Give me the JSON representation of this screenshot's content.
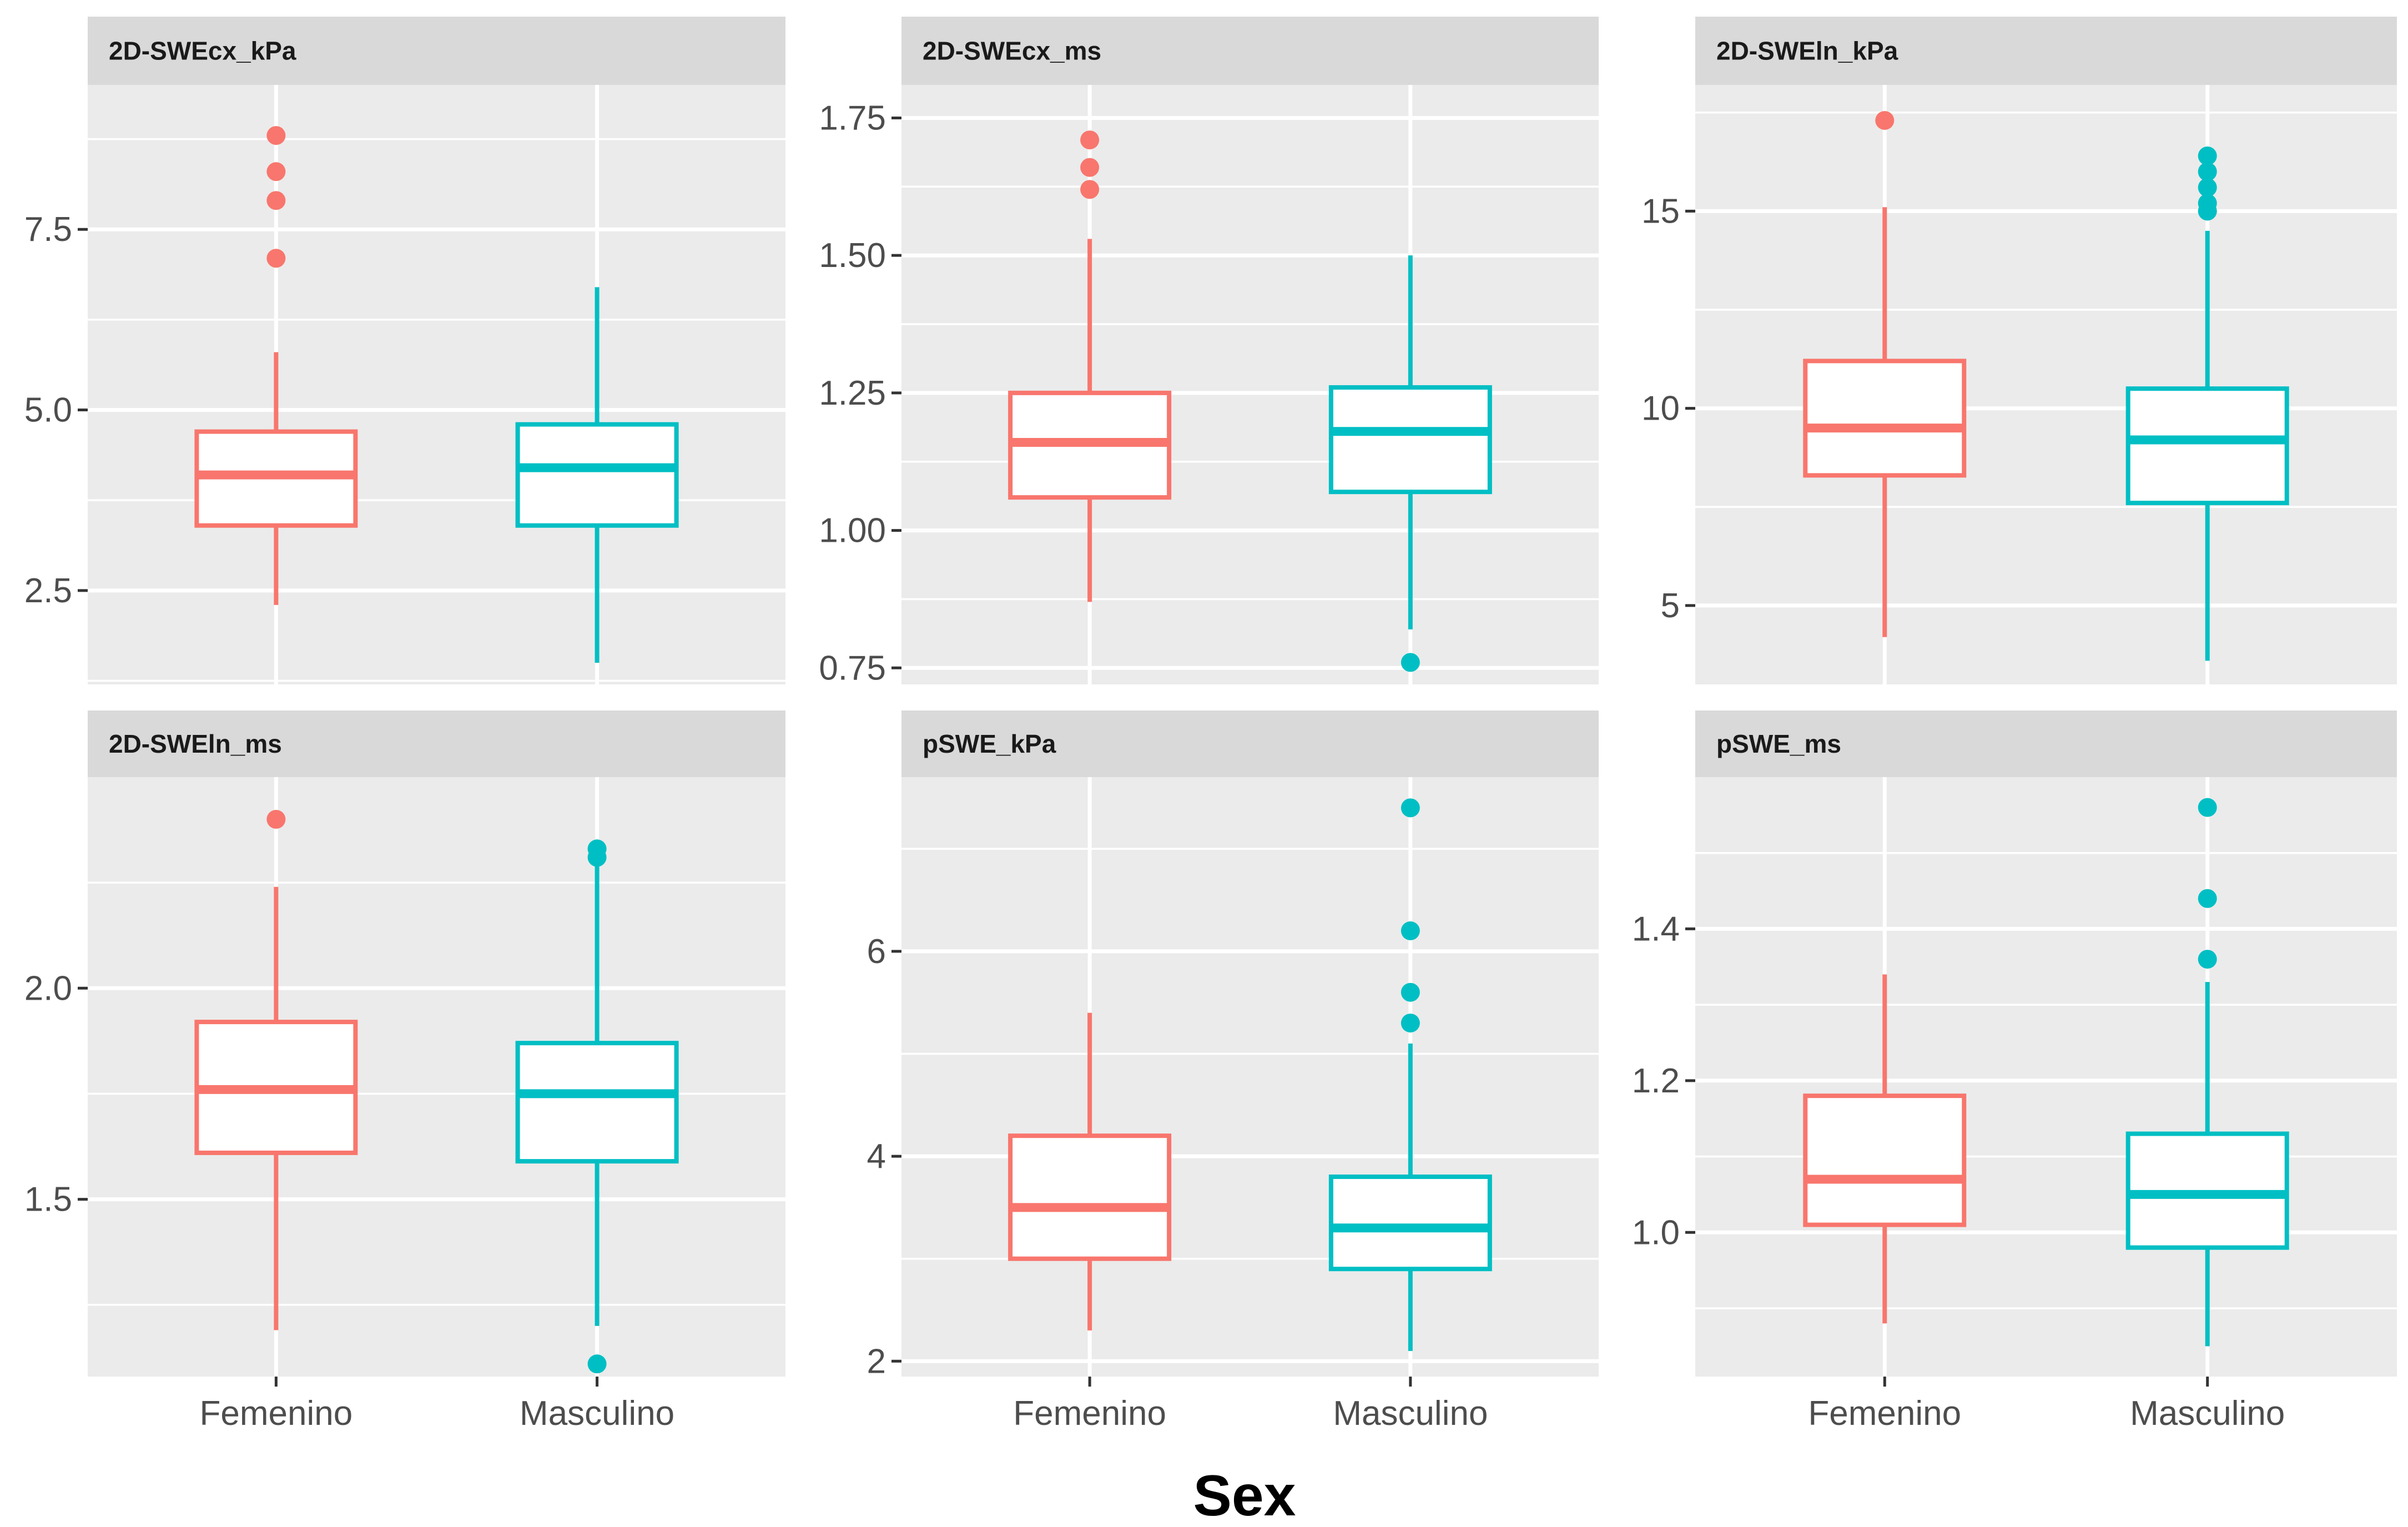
{
  "colors": {
    "Femenino": "#F8766D",
    "Masculino": "#00BFC4",
    "panel_bg": "#EBEBEB",
    "strip_bg": "#D9D9D9",
    "grid": "#FFFFFF",
    "tick_text": "#4D4D4D"
  },
  "chart_data": {
    "type": "boxplot",
    "xlabel": "Sex",
    "groups": [
      "Femenino",
      "Masculino"
    ],
    "panels": [
      {
        "title": "2D-SWEcx_kPa",
        "ylim": [
          1.2,
          9.5
        ],
        "yticks": [
          2.5,
          5.0,
          7.5
        ],
        "ytick_labels": [
          "2.5",
          "5.0",
          "7.5"
        ],
        "x_labels_shown": false,
        "boxes": [
          {
            "group": "Femenino",
            "low": 2.3,
            "q1": 3.4,
            "median": 4.1,
            "q3": 4.7,
            "high": 5.8,
            "outliers": [
              7.1,
              7.9,
              8.3,
              8.8
            ]
          },
          {
            "group": "Masculino",
            "low": 1.5,
            "q1": 3.4,
            "median": 4.2,
            "q3": 4.8,
            "high": 6.7,
            "outliers": []
          }
        ]
      },
      {
        "title": "2D-SWEcx_ms",
        "ylim": [
          0.72,
          1.81
        ],
        "yticks": [
          0.75,
          1.0,
          1.25,
          1.5,
          1.75
        ],
        "ytick_labels": [
          "0.75",
          "1.00",
          "1.25",
          "1.50",
          "1.75"
        ],
        "x_labels_shown": false,
        "boxes": [
          {
            "group": "Femenino",
            "low": 0.87,
            "q1": 1.06,
            "median": 1.16,
            "q3": 1.25,
            "high": 1.53,
            "outliers": [
              1.62,
              1.66,
              1.71
            ]
          },
          {
            "group": "Masculino",
            "low": 0.82,
            "q1": 1.07,
            "median": 1.18,
            "q3": 1.26,
            "high": 1.5,
            "outliers": [
              0.76
            ]
          }
        ]
      },
      {
        "title": "2D-SWEln_kPa",
        "ylim": [
          3.0,
          18.2
        ],
        "yticks": [
          5,
          10,
          15
        ],
        "ytick_labels": [
          "5",
          "10",
          "15"
        ],
        "x_labels_shown": false,
        "boxes": [
          {
            "group": "Femenino",
            "low": 4.2,
            "q1": 8.3,
            "median": 9.5,
            "q3": 11.2,
            "high": 15.1,
            "outliers": [
              17.3
            ]
          },
          {
            "group": "Masculino",
            "low": 3.6,
            "q1": 7.6,
            "median": 9.2,
            "q3": 10.5,
            "high": 14.5,
            "outliers": [
              15.0,
              15.2,
              15.6,
              16.0,
              16.4
            ]
          }
        ]
      },
      {
        "title": "2D-SWEln_ms",
        "ylim": [
          1.08,
          2.5
        ],
        "yticks": [
          1.5,
          2.0
        ],
        "ytick_labels": [
          "1.5",
          "2.0"
        ],
        "x_labels_shown": true,
        "x_labels": [
          "Femenino",
          "Masculino"
        ],
        "boxes": [
          {
            "group": "Femenino",
            "low": 1.19,
            "q1": 1.61,
            "median": 1.76,
            "q3": 1.92,
            "high": 2.24,
            "outliers": [
              2.4
            ]
          },
          {
            "group": "Masculino",
            "low": 1.2,
            "q1": 1.59,
            "median": 1.75,
            "q3": 1.87,
            "high": 2.29,
            "outliers": [
              1.11,
              2.31,
              2.33
            ]
          }
        ]
      },
      {
        "title": "pSWE_kPa",
        "ylim": [
          1.85,
          7.7
        ],
        "yticks": [
          2,
          4,
          6
        ],
        "ytick_labels": [
          "2",
          "4",
          "6"
        ],
        "x_labels_shown": true,
        "x_labels": [
          "Femenino",
          "Masculino"
        ],
        "boxes": [
          {
            "group": "Femenino",
            "low": 2.3,
            "q1": 3.0,
            "median": 3.5,
            "q3": 4.2,
            "high": 5.4,
            "outliers": []
          },
          {
            "group": "Masculino",
            "low": 2.1,
            "q1": 2.9,
            "median": 3.3,
            "q3": 3.8,
            "high": 5.1,
            "outliers": [
              5.3,
              5.6,
              6.2,
              7.4
            ]
          }
        ]
      },
      {
        "title": "pSWE_ms",
        "ylim": [
          0.81,
          1.6
        ],
        "yticks": [
          1.0,
          1.2,
          1.4
        ],
        "ytick_labels": [
          "1.0",
          "1.2",
          "1.4"
        ],
        "x_labels_shown": true,
        "x_labels": [
          "Femenino",
          "Masculino"
        ],
        "boxes": [
          {
            "group": "Femenino",
            "low": 0.88,
            "q1": 1.01,
            "median": 1.07,
            "q3": 1.18,
            "high": 1.34,
            "outliers": []
          },
          {
            "group": "Masculino",
            "low": 0.85,
            "q1": 0.98,
            "median": 1.05,
            "q3": 1.13,
            "high": 1.33,
            "outliers": [
              1.36,
              1.44,
              1.56
            ]
          }
        ]
      }
    ]
  }
}
